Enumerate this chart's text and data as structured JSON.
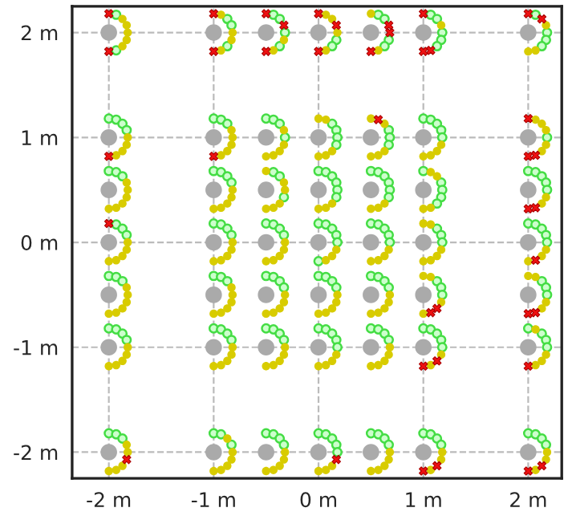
{
  "chart_data": {
    "type": "scatter",
    "xlim": [
      -2.35,
      2.32
    ],
    "ylim": [
      -2.25,
      2.25
    ],
    "xticks": [
      {
        "value": -2,
        "label": "-2 m"
      },
      {
        "value": -1,
        "label": "-1 m"
      },
      {
        "value": 0,
        "label": "0 m"
      },
      {
        "value": 1,
        "label": "1 m"
      },
      {
        "value": 2,
        "label": "2 m"
      }
    ],
    "yticks": [
      {
        "value": -2,
        "label": "-2 m"
      },
      {
        "value": -1,
        "label": "-1 m"
      },
      {
        "value": 0,
        "label": "0 m"
      },
      {
        "value": 1,
        "label": "1 m"
      },
      {
        "value": 2,
        "label": "2 m"
      }
    ],
    "grid": true,
    "line_style": "dashed",
    "series": [
      {
        "color": "#aaaaaa",
        "marker": "circle",
        "x": [
          -2,
          -1,
          -0.5,
          0,
          0.5,
          1,
          2,
          -2,
          -1,
          -0.5,
          0,
          0.5,
          1,
          2,
          -2,
          -1,
          -0.5,
          0,
          0.5,
          1,
          2,
          -2,
          -1,
          -0.5,
          0,
          0.5,
          1,
          2,
          -2,
          -1,
          -0.5,
          0,
          0.5,
          1,
          2,
          -2,
          -1,
          -0.5,
          0,
          0.5,
          1,
          2,
          -2,
          -1,
          -0.5,
          0,
          0.5,
          1,
          2
        ],
        "values": [
          2,
          2,
          2,
          2,
          2,
          2,
          2,
          1,
          1,
          1,
          1,
          1,
          1,
          1,
          0.5,
          0.5,
          0.5,
          0.5,
          0.5,
          0.5,
          0.5,
          0,
          0,
          0,
          0,
          0,
          0,
          0,
          -0.5,
          -0.5,
          -0.5,
          -0.5,
          -0.5,
          -0.5,
          -0.5,
          -1,
          -1,
          -1,
          -1,
          -1,
          -1,
          -1,
          -2,
          -2,
          -2,
          -2,
          -2,
          -2,
          -2
        ]
      },
      {
        "color": "#44dd44",
        "marker": "circle",
        "x": [
          -1.93,
          -1.93,
          -0.87,
          -0.83,
          -0.87,
          -0.43,
          -0.37,
          -0.32,
          -0.37,
          0.17,
          0.13,
          0.57,
          0.63,
          0.67,
          0.63,
          1.07,
          1.13,
          1.18,
          1.17,
          1.13,
          2.07,
          2.18,
          2.17,
          2.13,
          -2,
          -1.93,
          -1.87,
          -1.83,
          -1,
          -0.93,
          -0.87,
          -0.5,
          -0.43,
          -0.37,
          -0.32,
          0.13,
          0.17,
          0.18,
          0.17,
          0.67,
          0.68,
          0.67,
          1,
          1.07,
          1.13,
          1.17,
          1.18,
          2.18,
          -2,
          -1.93,
          -1.87,
          -1,
          -0.93,
          -0.87,
          -0.83,
          -0.43,
          -0.37,
          -0.33,
          0,
          0.07,
          0.13,
          0.17,
          0.18,
          0.17,
          0.5,
          0.57,
          0.63,
          0.67,
          0.68,
          0.67,
          1,
          1.17,
          1.18,
          1.17,
          1.13,
          2,
          2.07,
          2.13,
          2.17,
          2.18,
          -1.93,
          -1.87,
          -1.83,
          -1,
          -0.93,
          -0.87,
          -0.83,
          -0.5,
          -0.43,
          -0.37,
          -0.33,
          0,
          0.07,
          0.13,
          0.17,
          0.18,
          0,
          0.5,
          0.57,
          0.63,
          0.67,
          0.68,
          1.13,
          1.17,
          1.18,
          2,
          2.07,
          2.13,
          2.17,
          2.18,
          -2,
          -1.93,
          -1.87,
          -1,
          -0.93,
          -0.87,
          -0.5,
          -0.43,
          -0.37,
          -0.33,
          0,
          0.07,
          0.13,
          0.17,
          0.5,
          0.57,
          0.63,
          0.67,
          1.13,
          1.17,
          1.18,
          2.13,
          2.17,
          2.18,
          -2,
          -1.93,
          -1.87,
          -1.83,
          -1,
          -0.93,
          -0.87,
          -0.83,
          -0.5,
          -0.43,
          -0.37,
          -0.33,
          0,
          0.07,
          0.13,
          0.17,
          0.18,
          0.5,
          0.57,
          0.63,
          0.67,
          1,
          1.07,
          1.13,
          1.17,
          1.18,
          2,
          2.13,
          2.17,
          2.18,
          -2,
          -1.93,
          -1.87,
          -1,
          -0.93,
          -0.83,
          -0.5,
          -0.43,
          -0.37,
          -0.33,
          0,
          0.07,
          0.13,
          0.17,
          0.18,
          0.5,
          0.57,
          0.63,
          0.67,
          1,
          1.07,
          1.13,
          1.17,
          2,
          2.07,
          2.13,
          2.17
        ],
        "values": [
          2.17,
          1.83,
          2.13,
          2.07,
          1.87,
          2.17,
          2.13,
          2,
          1.87,
          1.93,
          1.87,
          2.17,
          2.13,
          1.93,
          1.87,
          2.17,
          2.13,
          2,
          1.93,
          1.87,
          2.17,
          2,
          1.93,
          1.87,
          1.18,
          1.17,
          1.13,
          1.07,
          1.18,
          1.17,
          1.13,
          1.18,
          1.17,
          1.13,
          1,
          1.13,
          1.07,
          1,
          0.93,
          1.07,
          1,
          0.93,
          1.18,
          1.17,
          1.13,
          1.07,
          1,
          1,
          0.68,
          0.67,
          0.63,
          0.68,
          0.67,
          0.63,
          0.57,
          0.67,
          0.63,
          0.43,
          0.68,
          0.67,
          0.63,
          0.57,
          0.5,
          0.43,
          0.68,
          0.67,
          0.63,
          0.57,
          0.5,
          0.43,
          0.68,
          0.57,
          0.5,
          0.43,
          0.37,
          0.68,
          0.67,
          0.63,
          0.57,
          0.5,
          0.17,
          0.13,
          0.07,
          0.18,
          0.17,
          0.13,
          0.07,
          0.18,
          0.17,
          0.13,
          0.07,
          0.18,
          0.17,
          0.13,
          0.07,
          0,
          -0.18,
          0.18,
          0.17,
          0.13,
          0.07,
          0,
          0.13,
          0.07,
          0,
          0.18,
          0.17,
          0.13,
          0.07,
          0,
          -0.32,
          -0.33,
          -0.37,
          -0.32,
          -0.33,
          -0.37,
          -0.32,
          -0.33,
          -0.37,
          -0.43,
          -0.32,
          -0.33,
          -0.37,
          -0.43,
          -0.32,
          -0.33,
          -0.37,
          -0.43,
          -0.37,
          -0.43,
          -0.5,
          -0.37,
          -0.43,
          -0.5,
          -0.82,
          -0.83,
          -0.87,
          -0.93,
          -0.82,
          -0.83,
          -0.87,
          -0.93,
          -0.82,
          -0.83,
          -0.87,
          -0.93,
          -0.82,
          -0.83,
          -0.87,
          -0.93,
          -1,
          -0.82,
          -0.83,
          -0.87,
          -0.93,
          -0.82,
          -0.83,
          -0.87,
          -0.93,
          -1,
          -0.82,
          -0.87,
          -0.93,
          -1,
          -1.82,
          -1.83,
          -1.87,
          -1.82,
          -1.83,
          -1.93,
          -1.82,
          -1.83,
          -1.87,
          -1.93,
          -1.82,
          -1.83,
          -1.87,
          -1.93,
          -2,
          -1.82,
          -1.83,
          -1.87,
          -1.93,
          -1.82,
          -1.83,
          -1.87,
          -1.93,
          -1.82,
          -1.83,
          -1.87,
          -1.93
        ]
      },
      {
        "color": "#d8cc00",
        "marker": "circle",
        "x": [
          -1.87,
          -1.83,
          -1.82,
          -1.83,
          -1.87,
          -0.93,
          -0.82,
          -0.83,
          -0.93,
          -0.33,
          -0.43,
          0.07,
          0.13,
          0.18,
          0.07,
          0.5,
          0.57,
          1.17,
          2.17,
          2.07,
          2,
          -1.82,
          -1.83,
          -1.87,
          -1.93,
          -0.83,
          -0.82,
          -0.83,
          -0.87,
          -0.93,
          -0.33,
          -0.33,
          -0.37,
          -0.43,
          -0.5,
          0,
          0.07,
          0.13,
          0.07,
          0,
          0.5,
          0.63,
          0.63,
          0.57,
          0.5,
          1.17,
          1.13,
          1.07,
          1,
          2.07,
          2.13,
          2.17,
          2.17,
          2.13,
          -1.83,
          -1.82,
          -1.83,
          -1.87,
          -1.93,
          -2,
          -0.82,
          -0.83,
          -0.87,
          -0.93,
          -1,
          -0.5,
          -0.33,
          -0.32,
          -0.37,
          -0.43,
          -0.5,
          0.13,
          0.07,
          0,
          0.63,
          0.57,
          0.5,
          1.07,
          1.13,
          1.07,
          1,
          2.17,
          2.13,
          -1.82,
          -1.83,
          -1.87,
          -1.93,
          -2,
          -0.82,
          -0.83,
          -0.87,
          -0.93,
          -1,
          -0.32,
          -0.33,
          -0.37,
          -0.43,
          -0.5,
          0.17,
          0.13,
          0.07,
          0.67,
          0.63,
          0.57,
          0.5,
          1,
          1.07,
          1.17,
          1.13,
          1.07,
          1,
          2.17,
          2.13,
          2,
          -1.83,
          -1.82,
          -1.83,
          -1.87,
          -1.93,
          -2,
          -0.83,
          -0.82,
          -0.83,
          -0.87,
          -0.93,
          -1,
          -0.32,
          -0.33,
          -0.37,
          -0.43,
          -0.5,
          0.18,
          0.17,
          0.13,
          0.07,
          0,
          0.68,
          0.67,
          0.63,
          0.57,
          0.5,
          1,
          1.07,
          1.17,
          1,
          2,
          2.07,
          2.17,
          2.13,
          -1.82,
          -1.83,
          -1.87,
          -1.93,
          -2,
          -0.82,
          -0.83,
          -0.87,
          -0.93,
          -1,
          -0.32,
          -0.33,
          -0.37,
          -0.43,
          -0.5,
          0.17,
          0.13,
          0.07,
          0,
          0.68,
          0.67,
          0.63,
          0.57,
          0.5,
          1.17,
          1.07,
          2.07,
          2.17,
          2.13,
          2.07,
          -1.83,
          -1.82,
          -1.87,
          -1.93,
          -2,
          -0.87,
          -0.82,
          -0.83,
          -0.87,
          -0.93,
          -1,
          -0.32,
          -0.33,
          -0.37,
          -0.43,
          -0.5,
          0.13,
          0.07,
          0,
          0.68,
          0.67,
          0.63,
          0.57,
          0.5,
          1.18,
          1.17,
          1.07,
          2.18,
          2.17,
          2.07
        ],
        "values": [
          2.13,
          2.07,
          2,
          1.93,
          1.87,
          2.17,
          2,
          1.93,
          1.83,
          1.93,
          1.83,
          2.17,
          2.13,
          2,
          1.83,
          2.18,
          1.83,
          2.07,
          2.07,
          1.83,
          1.82,
          1,
          0.93,
          0.87,
          0.83,
          1.07,
          1,
          0.93,
          0.87,
          0.83,
          1.07,
          0.93,
          0.87,
          0.83,
          0.82,
          1.18,
          1.17,
          0.87,
          0.83,
          0.82,
          1.18,
          1.13,
          0.87,
          0.83,
          0.82,
          0.93,
          0.87,
          0.83,
          0.82,
          1.17,
          1.13,
          1.07,
          0.93,
          0.87,
          0.57,
          0.5,
          0.43,
          0.37,
          0.33,
          0.32,
          0.5,
          0.43,
          0.37,
          0.33,
          0.32,
          0.68,
          0.57,
          0.5,
          0.37,
          0.33,
          0.32,
          0.37,
          0.33,
          0.32,
          0.37,
          0.33,
          0.32,
          0.67,
          0.63,
          0.33,
          0.32,
          0.43,
          0.37,
          0,
          -0.07,
          -0.13,
          -0.17,
          -0.18,
          0,
          -0.07,
          -0.13,
          -0.17,
          -0.18,
          0,
          -0.07,
          -0.13,
          -0.17,
          -0.18,
          -0.07,
          -0.13,
          -0.17,
          -0.07,
          -0.13,
          -0.17,
          -0.18,
          0.18,
          0.17,
          -0.07,
          -0.13,
          -0.17,
          -0.18,
          -0.07,
          -0.13,
          -0.18,
          -0.43,
          -0.5,
          -0.57,
          -0.63,
          -0.67,
          -0.68,
          -0.43,
          -0.5,
          -0.57,
          -0.63,
          -0.67,
          -0.68,
          -0.5,
          -0.57,
          -0.63,
          -0.67,
          -0.68,
          -0.5,
          -0.57,
          -0.63,
          -0.67,
          -0.68,
          -0.5,
          -0.57,
          -0.63,
          -0.67,
          -0.68,
          -0.32,
          -0.33,
          -0.57,
          -0.68,
          -0.32,
          -0.33,
          -0.57,
          -0.63,
          -1,
          -1.07,
          -1.13,
          -1.17,
          -1.18,
          -1,
          -1.07,
          -1.13,
          -1.17,
          -1.18,
          -1,
          -1.07,
          -1.13,
          -1.17,
          -1.18,
          -1.07,
          -1.13,
          -1.17,
          -1.18,
          -1,
          -1.07,
          -1.13,
          -1.17,
          -1.18,
          -1.07,
          -1.17,
          -0.83,
          -1.07,
          -1.13,
          -1.17,
          -1.93,
          -2,
          -2.13,
          -2.17,
          -2.18,
          -1.87,
          -2,
          -2.07,
          -2.13,
          -2.17,
          -2.18,
          -2,
          -2.07,
          -2.13,
          -2.17,
          -2.18,
          -2.13,
          -2.17,
          -2.18,
          -2,
          -2.07,
          -2.13,
          -2.17,
          -2.18,
          -2,
          -2.07,
          -2.17,
          -2,
          -2.07,
          -2.17
        ]
      },
      {
        "color": "#ee1111",
        "marker": "cross",
        "x": [
          -2,
          -2,
          -1,
          -1,
          -0.5,
          -0.33,
          -0.5,
          0,
          0.17,
          0,
          0.67,
          0.68,
          0.5,
          1,
          1.07,
          1,
          2,
          2.13,
          -2,
          -1,
          0.57,
          2,
          2.07,
          2,
          2.07,
          2,
          -2,
          2.07,
          1.13,
          1.07,
          2.07,
          2,
          1.13,
          1,
          2,
          -1.83,
          0.17,
          1.13,
          1,
          2.13,
          2
        ],
        "values": [
          2.18,
          1.82,
          2.18,
          1.82,
          2.18,
          2.07,
          1.82,
          2.18,
          2.07,
          1.82,
          2.07,
          2,
          1.82,
          2.18,
          1.83,
          1.82,
          2.18,
          2.13,
          0.82,
          0.82,
          1.17,
          1.18,
          0.83,
          0.82,
          0.33,
          0.32,
          0.18,
          -0.17,
          -0.63,
          -0.67,
          -0.67,
          -0.68,
          -1.13,
          -1.18,
          -1.18,
          -2.07,
          -2.07,
          -2.13,
          -2.18,
          -2.13,
          -2.18
        ]
      }
    ]
  }
}
